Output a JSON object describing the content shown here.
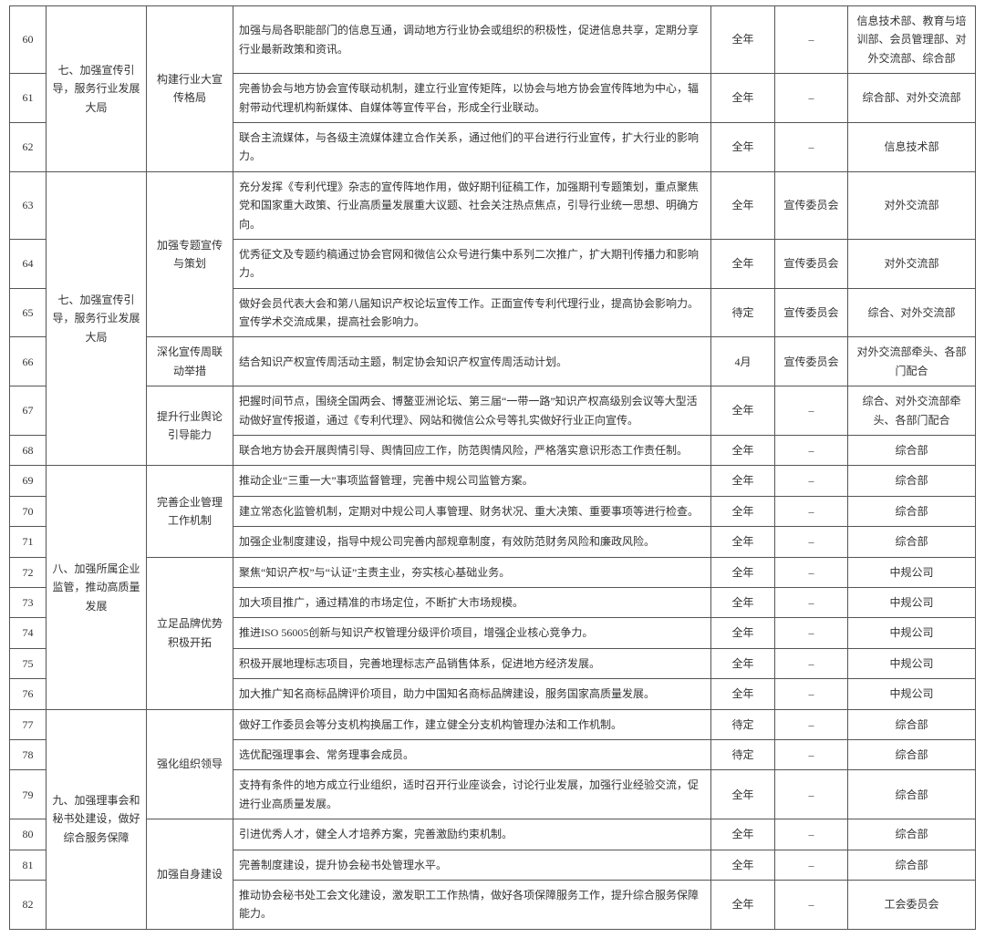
{
  "categories": {
    "seven_a": "七、加强宣传引导，服务行业发展大局",
    "seven_b": "七、加强宣传引导，服务行业发展大局",
    "eight": "八、加强所属企业监管，推动高质量发展",
    "nine": "九、加强理事会和秘书处建设，做好综合服务保障"
  },
  "subs": {
    "s60": "构建行业大宣传格局",
    "s63": "加强专题宣传与策划",
    "s66": "深化宣传周联动举措",
    "s67": "提升行业舆论引导能力",
    "s69": "完善企业管理工作机制",
    "s72": "立足品牌优势积极开拓",
    "s77": "强化组织领导",
    "s80": "加强自身建设"
  },
  "rows": {
    "r60": {
      "n": "60",
      "d": "加强与局各职能部门的信息互通，调动地方行业协会或组织的积极性，促进信息共享，定期分享行业最新政策和资讯。",
      "t": "全年",
      "c": "–",
      "p": "信息技术部、教育与培训部、会员管理部、对外交流部、综合部"
    },
    "r61": {
      "n": "61",
      "d": "完善协会与地方协会宣传联动机制，建立行业宣传矩阵，以协会与地方协会宣传阵地为中心，辐射带动代理机构新媒体、自媒体等宣传平台，形成全行业联动。",
      "t": "全年",
      "c": "–",
      "p": "综合部、对外交流部"
    },
    "r62": {
      "n": "62",
      "d": "联合主流媒体，与各级主流媒体建立合作关系，通过他们的平台进行行业宣传，扩大行业的影响力。",
      "t": "全年",
      "c": "–",
      "p": "信息技术部"
    },
    "r63": {
      "n": "63",
      "d": "充分发挥《专利代理》杂志的宣传阵地作用，做好期刊征稿工作，加强期刊专题策划，重点聚焦党和国家重大政策、行业高质量发展重大议题、社会关注热点焦点，引导行业统一思想、明确方向。",
      "t": "全年",
      "c": "宣传委员会",
      "p": "对外交流部"
    },
    "r64": {
      "n": "64",
      "d": "优秀征文及专题约稿通过协会官网和微信公众号进行集中系列二次推广，扩大期刊传播力和影响力。",
      "t": "全年",
      "c": "宣传委员会",
      "p": "对外交流部"
    },
    "r65": {
      "n": "65",
      "d": "做好会员代表大会和第八届知识产权论坛宣传工作。正面宣传专利代理行业，提高协会影响力。宣传学术交流成果，提高社会影响力。",
      "t": "待定",
      "c": "宣传委员会",
      "p": "综合、对外交流部"
    },
    "r66": {
      "n": "66",
      "d": "结合知识产权宣传周活动主题，制定协会知识产权宣传周活动计划。",
      "t": "4月",
      "c": "宣传委员会",
      "p": "对外交流部牵头、各部门配合"
    },
    "r67": {
      "n": "67",
      "d": "把握时间节点，围绕全国两会、博鳌亚洲论坛、第三届“一带一路”知识产权高级别会议等大型活动做好宣传报道，通过《专利代理》、网站和微信公众号等扎实做好行业正向宣传。",
      "t": "全年",
      "c": "–",
      "p": "综合、对外交流部牵头、各部门配合"
    },
    "r68": {
      "n": "68",
      "d": "联合地方协会开展舆情引导、舆情回应工作，防范舆情风险，严格落实意识形态工作责任制。",
      "t": "全年",
      "c": "–",
      "p": "综合部"
    },
    "r69": {
      "n": "69",
      "d": "推动企业“三重一大”事项监督管理，完善中规公司监管方案。",
      "t": "全年",
      "c": "–",
      "p": "综合部"
    },
    "r70": {
      "n": "70",
      "d": "建立常态化监管机制，定期对中规公司人事管理、财务状况、重大决策、重要事项等进行检查。",
      "t": "全年",
      "c": "–",
      "p": "综合部"
    },
    "r71": {
      "n": "71",
      "d": "加强企业制度建设，指导中规公司完善内部规章制度，有效防范财务风险和廉政风险。",
      "t": "全年",
      "c": "–",
      "p": "综合部"
    },
    "r72": {
      "n": "72",
      "d": "聚焦“知识产权”与“认证”主责主业，夯实核心基础业务。",
      "t": "全年",
      "c": "–",
      "p": "中规公司"
    },
    "r73": {
      "n": "73",
      "d": "加大项目推广，通过精准的市场定位，不断扩大市场规模。",
      "t": "全年",
      "c": "–",
      "p": "中规公司"
    },
    "r74": {
      "n": "74",
      "d": "推进ISO 56005创新与知识产权管理分级评价项目，增强企业核心竞争力。",
      "t": "全年",
      "c": "–",
      "p": "中规公司"
    },
    "r75": {
      "n": "75",
      "d": "积极开展地理标志项目，完善地理标志产品销售体系，促进地方经济发展。",
      "t": "全年",
      "c": "–",
      "p": "中规公司"
    },
    "r76": {
      "n": "76",
      "d": "加大推广知名商标品牌评价项目，助力中国知名商标品牌建设，服务国家高质量发展。",
      "t": "全年",
      "c": "–",
      "p": "中规公司"
    },
    "r77": {
      "n": "77",
      "d": "做好工作委员会等分支机构换届工作，建立健全分支机构管理办法和工作机制。",
      "t": "待定",
      "c": "–",
      "p": "综合部"
    },
    "r78": {
      "n": "78",
      "d": "选优配强理事会、常务理事会成员。",
      "t": "待定",
      "c": "–",
      "p": "综合部"
    },
    "r79": {
      "n": "79",
      "d": "支持有条件的地方成立行业组织，适时召开行业座谈会，讨论行业发展，加强行业经验交流，促进行业高质量发展。",
      "t": "全年",
      "c": "–",
      "p": "综合部"
    },
    "r80": {
      "n": "80",
      "d": "引进优秀人才，健全人才培养方案，完善激励约束机制。",
      "t": "全年",
      "c": "–",
      "p": "综合部"
    },
    "r81": {
      "n": "81",
      "d": "完善制度建设，提升协会秘书处管理水平。",
      "t": "全年",
      "c": "–",
      "p": "综合部"
    },
    "r82": {
      "n": "82",
      "d": "推动协会秘书处工会文化建设，激发职工工作热情，做好各项保障服务工作，提升综合服务保障能力。",
      "t": "全年",
      "c": "–",
      "p": "工会委员会"
    }
  }
}
